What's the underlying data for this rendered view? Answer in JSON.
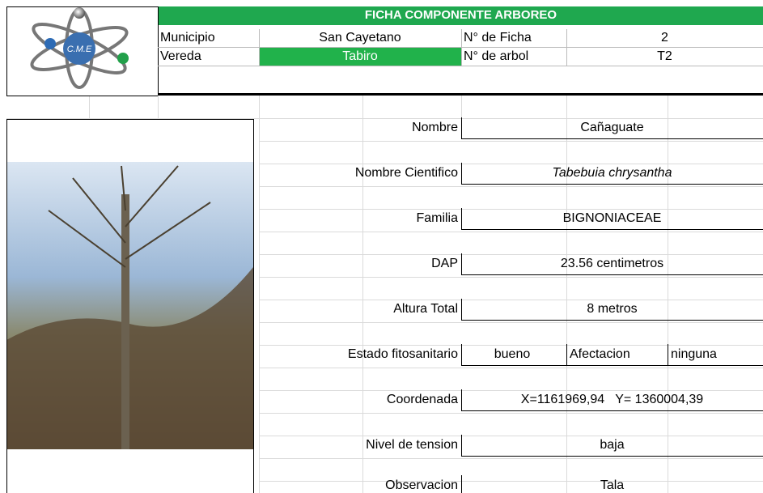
{
  "logo_text": "C.M.E",
  "header": {
    "title": "FICHA COMPONENTE ARBOREO",
    "rows": [
      [
        "Municipio",
        "San Cayetano",
        "N° de Ficha",
        "2"
      ],
      [
        "Vereda",
        "Tabiro",
        "N° de arbol",
        "T2"
      ]
    ]
  },
  "form": {
    "rows": [
      {
        "label": "Nombre",
        "value": "Cañaguate"
      },
      {
        "label": "Nombre Cientifico",
        "value": "Tabebuia chrysantha",
        "italic": true
      },
      {
        "label": "Familia",
        "value": "BIGNONIACEAE"
      },
      {
        "label": "DAP",
        "value": "23.56 centimetros"
      },
      {
        "label": "Altura Total",
        "value": "8 metros"
      },
      {
        "label": "Estado fitosanitario",
        "cells": [
          "bueno",
          "Afectacion",
          "ninguna"
        ]
      },
      {
        "label": "Coordenada",
        "value": "X=1161969,94   Y= 1360004,39"
      },
      {
        "label": "Nivel de tension",
        "value": "baja"
      },
      {
        "label": "Observacion",
        "value": "Tala"
      }
    ]
  }
}
